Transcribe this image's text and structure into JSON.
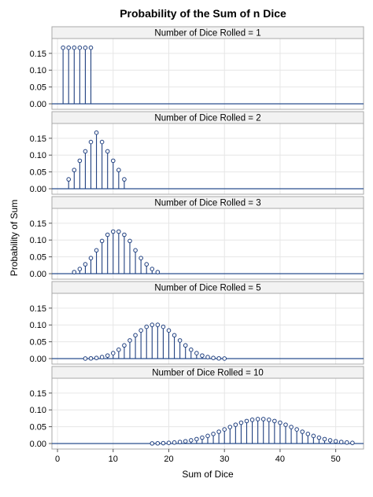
{
  "chart_data": {
    "type": "stem",
    "title": "Probability of the Sum of n Dice",
    "xlabel": "Sum of Dice",
    "ylabel": "Probability of Sum",
    "xlim": [
      -1,
      55
    ],
    "ylim": [
      0,
      0.18
    ],
    "x_ticks": [
      0,
      10,
      20,
      30,
      40,
      50
    ],
    "y_ticks": [
      0.0,
      0.05,
      0.1,
      0.15
    ],
    "y_tick_labels": [
      "0.00",
      "0.05",
      "0.10",
      "0.15"
    ],
    "grid": true,
    "colors": {
      "stem": "#1f3f7f",
      "baseline": "#2a4f8f",
      "marker_fill": "#ffffff"
    },
    "panels": [
      {
        "label": "Number of Dice Rolled = 1",
        "x": [
          1,
          2,
          3,
          4,
          5,
          6
        ],
        "y": [
          0.1667,
          0.1667,
          0.1667,
          0.1667,
          0.1667,
          0.1667
        ]
      },
      {
        "label": "Number of Dice Rolled = 2",
        "x": [
          2,
          3,
          4,
          5,
          6,
          7,
          8,
          9,
          10,
          11,
          12
        ],
        "y": [
          0.0278,
          0.0556,
          0.0833,
          0.1111,
          0.1389,
          0.1667,
          0.1389,
          0.1111,
          0.0833,
          0.0556,
          0.0278
        ]
      },
      {
        "label": "Number of Dice Rolled = 3",
        "x": [
          3,
          4,
          5,
          6,
          7,
          8,
          9,
          10,
          11,
          12,
          13,
          14,
          15,
          16,
          17,
          18
        ],
        "y": [
          0.0046,
          0.0139,
          0.0278,
          0.0463,
          0.0694,
          0.0972,
          0.1157,
          0.125,
          0.125,
          0.1157,
          0.0972,
          0.0694,
          0.0463,
          0.0278,
          0.0139,
          0.0046
        ]
      },
      {
        "label": "Number of Dice Rolled = 5",
        "x": [
          5,
          6,
          7,
          8,
          9,
          10,
          11,
          12,
          13,
          14,
          15,
          16,
          17,
          18,
          19,
          20,
          21,
          22,
          23,
          24,
          25,
          26,
          27,
          28,
          29,
          30
        ],
        "y": [
          0.0001,
          0.0006,
          0.0019,
          0.0045,
          0.009,
          0.0162,
          0.0264,
          0.0392,
          0.054,
          0.0694,
          0.0837,
          0.0945,
          0.1003,
          0.1003,
          0.0945,
          0.0837,
          0.0694,
          0.054,
          0.0392,
          0.0264,
          0.0162,
          0.009,
          0.0045,
          0.0019,
          0.0006,
          0.0001
        ]
      },
      {
        "label": "Number of Dice Rolled = 10",
        "x": [
          17,
          18,
          19,
          20,
          21,
          22,
          23,
          24,
          25,
          26,
          27,
          28,
          29,
          30,
          31,
          32,
          33,
          34,
          35,
          36,
          37,
          38,
          39,
          40,
          41,
          42,
          43,
          44,
          45,
          46,
          47,
          48,
          49,
          50,
          51,
          52,
          53
        ],
        "y": [
          0.0003,
          0.0006,
          0.0011,
          0.0019,
          0.003,
          0.0046,
          0.0067,
          0.0095,
          0.0131,
          0.0174,
          0.0226,
          0.0285,
          0.035,
          0.0419,
          0.049,
          0.0558,
          0.0619,
          0.0669,
          0.0705,
          0.0725,
          0.0725,
          0.0705,
          0.0669,
          0.0619,
          0.0558,
          0.049,
          0.0419,
          0.035,
          0.0285,
          0.0226,
          0.0174,
          0.0131,
          0.0095,
          0.0067,
          0.0046,
          0.003,
          0.0019
        ]
      }
    ]
  }
}
